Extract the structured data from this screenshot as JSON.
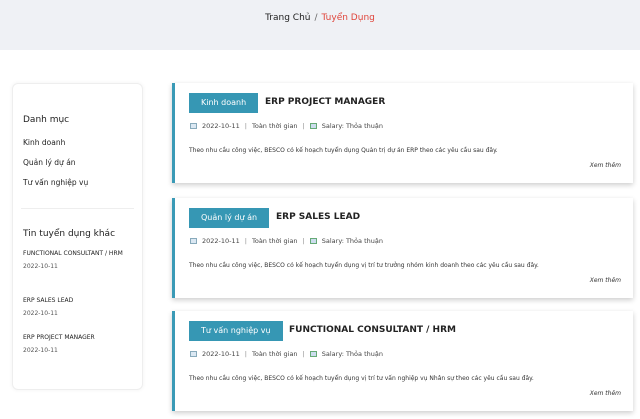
{
  "breadcrumb": {
    "home": "Trang Chủ",
    "separator": "/",
    "current": "Tuyển Dụng"
  },
  "sidebar": {
    "categories_title": "Danh mục",
    "categories": [
      "Kinh doanh",
      "Quản lý dự án",
      "Tư vấn nghiệp vụ"
    ],
    "other_title": "Tin tuyển dụng khác",
    "other_jobs": [
      {
        "title": "FUNCTIONAL CONSULTANT / HRM",
        "date": "2022-10-11"
      },
      {
        "title": "ERP SALES LEAD",
        "date": "2022-10-11"
      },
      {
        "title": "ERP PROJECT MANAGER",
        "date": "2022-10-11"
      }
    ]
  },
  "jobs": [
    {
      "category": "Kinh doanh",
      "title": "ERP PROJECT MANAGER",
      "date": "2022-10-11",
      "type": "Toàn thời gian",
      "salary": "Salary: Thỏa thuận",
      "desc": "Theo nhu cầu công việc, BESCO có kế hoạch tuyển dụng Quản trị dự án ERP theo các yêu cầu sau đây.",
      "more": "Xem thêm"
    },
    {
      "category": "Quản lý dự án",
      "title": "ERP SALES LEAD",
      "date": "2022-10-11",
      "type": "Toàn thời gian",
      "salary": "Salary: Thỏa thuận",
      "desc": "Theo nhu cầu công việc, BESCO có kế hoạch tuyển dụng vị trí tư trưởng nhóm kinh doanh theo các yêu cầu sau đây.",
      "more": "Xem thêm"
    },
    {
      "category": "Tư vấn nghiệp vụ",
      "title": "FUNCTIONAL CONSULTANT / HRM",
      "date": "2022-10-11",
      "type": "Toàn thời gian",
      "salary": "Salary: Thỏa thuận",
      "desc": "Theo nhu cầu công việc, BESCO có kế hoạch tuyển dụng vị trí tư vấn nghiệp vụ Nhân sự theo các yêu cầu sau đây.",
      "more": "Xem thêm"
    }
  ],
  "colors": {
    "accent": "#3697b4",
    "breadcrumb_current": "#e0453b",
    "header_bg": "#eff1f5"
  }
}
